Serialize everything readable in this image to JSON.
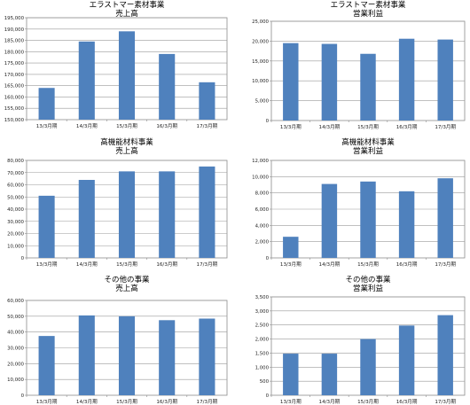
{
  "chart_data": [
    {
      "type": "bar",
      "title": "エラストマー素材事業",
      "subtitle": "売上高",
      "categories": [
        "13/3月期",
        "14/3月期",
        "15/3月期",
        "16/3月期",
        "17/3月期"
      ],
      "values": [
        164000,
        184500,
        189000,
        179000,
        166500
      ],
      "ylim": [
        150000,
        195000
      ],
      "yticks": [
        "150,000",
        "155,000",
        "160,000",
        "165,000",
        "170,000",
        "175,000",
        "180,000",
        "185,000",
        "190,000",
        "195,000"
      ],
      "grid": true,
      "bar_color": "#4f81bd"
    },
    {
      "type": "bar",
      "title": "エラストマー素材事業",
      "subtitle": "営業利益",
      "categories": [
        "13/3月期",
        "14/3月期",
        "15/3月期",
        "16/3月期",
        "17/3月期"
      ],
      "values": [
        19500,
        19300,
        16800,
        20600,
        20400
      ],
      "ylim": [
        0,
        25000
      ],
      "yticks": [
        "0",
        "5,000",
        "10,000",
        "15,000",
        "20,000",
        "25,000"
      ],
      "grid": true,
      "bar_color": "#4f81bd"
    },
    {
      "type": "bar",
      "title": "高機能材料事業",
      "subtitle": "売上高",
      "categories": [
        "13/3月期",
        "14/3月期",
        "15/3月期",
        "16/3月期",
        "17/3月期"
      ],
      "values": [
        51000,
        64000,
        71000,
        71000,
        75000
      ],
      "ylim": [
        0,
        80000
      ],
      "yticks": [
        "0",
        "10,000",
        "20,000",
        "30,000",
        "40,000",
        "50,000",
        "60,000",
        "70,000",
        "80,000"
      ],
      "grid": true,
      "bar_color": "#4f81bd"
    },
    {
      "type": "bar",
      "title": "高機能材料事業",
      "subtitle": "営業利益",
      "categories": [
        "13/3月期",
        "14/3月期",
        "15/3月期",
        "16/3月期",
        "17/3月期"
      ],
      "values": [
        2600,
        9100,
        9400,
        8200,
        9800
      ],
      "ylim": [
        0,
        12000
      ],
      "yticks": [
        "0",
        "2,000",
        "4,000",
        "6,000",
        "8,000",
        "10,000",
        "12,000"
      ],
      "grid": true,
      "bar_color": "#4f81bd"
    },
    {
      "type": "bar",
      "title": "その他の事業",
      "subtitle": "売上高",
      "categories": [
        "13/3月期",
        "14/3月期",
        "15/3月期",
        "16/3月期",
        "17/3月期"
      ],
      "values": [
        37500,
        50500,
        50000,
        47500,
        48500
      ],
      "ylim": [
        0,
        60000
      ],
      "yticks": [
        "0",
        "10,000",
        "20,000",
        "30,000",
        "40,000",
        "50,000",
        "60,000"
      ],
      "grid": true,
      "bar_color": "#4f81bd"
    },
    {
      "type": "bar",
      "title": "その他の事業",
      "subtitle": "営業利益",
      "categories": [
        "13/3月期",
        "14/3月期",
        "15/3月期",
        "16/3月期",
        "17/3月期"
      ],
      "values": [
        1480,
        1480,
        2000,
        2480,
        2850
      ],
      "ylim": [
        0,
        3500
      ],
      "yticks": [
        "0",
        "500",
        "1,000",
        "1,500",
        "2,000",
        "2,500",
        "3,000",
        "3,500"
      ],
      "grid": true,
      "bar_color": "#4f81bd"
    }
  ]
}
